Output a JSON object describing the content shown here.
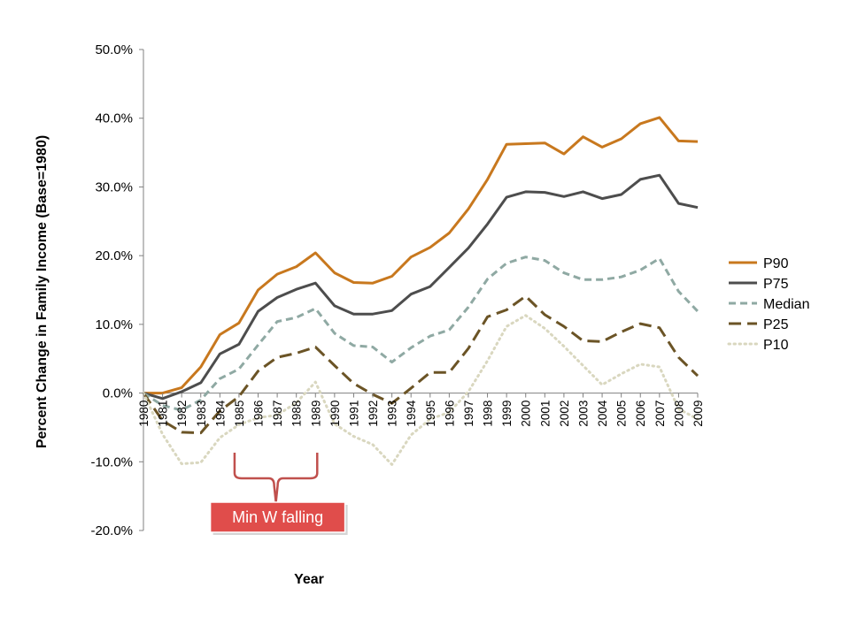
{
  "chart_data": {
    "type": "line",
    "title": "",
    "xlabel": "Year",
    "ylabel": "Percent Change in Family Income (Base=1980)",
    "ylim": [
      -0.2,
      0.5
    ],
    "ytick_step": 0.1,
    "y_format": "percent_1dp",
    "grid": false,
    "legend_position": "right",
    "x": [
      "1980",
      "1981",
      "1982",
      "1983",
      "1984",
      "1985",
      "1986",
      "1987",
      "1988",
      "1989",
      "1990",
      "1991",
      "1992",
      "1993",
      "1994",
      "1995",
      "1996",
      "1997",
      "1998",
      "1999",
      "2000",
      "2001",
      "2002",
      "2003",
      "2004",
      "2005",
      "2006",
      "2007",
      "2008",
      "2009"
    ],
    "series": [
      {
        "name": "P90",
        "color": "#C8781E",
        "dash": "solid",
        "values": [
          0.0,
          0.0,
          0.008,
          0.038,
          0.085,
          0.102,
          0.15,
          0.173,
          0.184,
          0.204,
          0.175,
          0.161,
          0.16,
          0.17,
          0.198,
          0.212,
          0.233,
          0.268,
          0.311,
          0.362,
          0.363,
          0.364,
          0.348,
          0.373,
          0.358,
          0.37,
          0.392,
          0.401,
          0.367,
          0.366
        ]
      },
      {
        "name": "P75",
        "color": "#4D4D4D",
        "dash": "solid",
        "values": [
          0.0,
          -0.008,
          0.002,
          0.015,
          0.057,
          0.071,
          0.119,
          0.139,
          0.151,
          0.16,
          0.127,
          0.115,
          0.115,
          0.12,
          0.144,
          0.155,
          0.183,
          0.211,
          0.246,
          0.285,
          0.293,
          0.292,
          0.286,
          0.293,
          0.283,
          0.289,
          0.311,
          0.317,
          0.276,
          0.27
        ]
      },
      {
        "name": "Median",
        "color": "#8FA9A3",
        "dash": "medium",
        "values": [
          0.0,
          -0.018,
          -0.025,
          -0.01,
          0.021,
          0.035,
          0.07,
          0.104,
          0.11,
          0.123,
          0.087,
          0.069,
          0.067,
          0.045,
          0.066,
          0.083,
          0.092,
          0.125,
          0.166,
          0.189,
          0.198,
          0.193,
          0.175,
          0.165,
          0.165,
          0.169,
          0.179,
          0.196,
          0.148,
          0.119
        ]
      },
      {
        "name": "P25",
        "color": "#6B5426",
        "dash": "long",
        "values": [
          0.0,
          -0.04,
          -0.057,
          -0.058,
          -0.026,
          -0.005,
          0.032,
          0.052,
          0.058,
          0.067,
          0.04,
          0.014,
          -0.002,
          -0.015,
          0.007,
          0.03,
          0.03,
          0.065,
          0.111,
          0.121,
          0.141,
          0.114,
          0.097,
          0.076,
          0.075,
          0.089,
          0.101,
          0.095,
          0.052,
          0.025
        ]
      },
      {
        "name": "P10",
        "color": "#D9D7BF",
        "dash": "dotted",
        "values": [
          0.0,
          -0.06,
          -0.103,
          -0.101,
          -0.065,
          -0.046,
          -0.036,
          -0.032,
          -0.014,
          0.016,
          -0.045,
          -0.063,
          -0.075,
          -0.104,
          -0.061,
          -0.038,
          -0.028,
          0.002,
          0.047,
          0.097,
          0.113,
          0.094,
          0.068,
          0.04,
          0.012,
          0.028,
          0.042,
          0.038,
          -0.023,
          -0.038
        ]
      }
    ],
    "annotations": [
      {
        "text": "Min W falling",
        "from_x": "1985",
        "to_x": "1989",
        "style": "bracket",
        "color": "#C0504D",
        "box_color": "#E04D4B"
      }
    ]
  }
}
